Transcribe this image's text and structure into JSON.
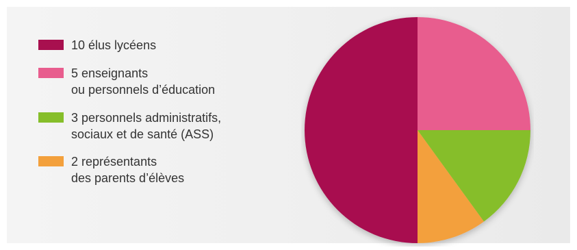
{
  "chart_data": {
    "type": "pie",
    "categories": [
      "10 élus lycéens",
      "5 enseignants ou personnels d’éducation",
      "3 personnels administratifs, sociaux et de santé (ASS)",
      "2 représentants des parents d’élèves"
    ],
    "values": [
      10,
      5,
      3,
      2
    ],
    "colors": [
      "#a8104f",
      "#e85d8e",
      "#86be2a",
      "#f3a03c"
    ],
    "legend_placement": "left",
    "start": "top, clockwise from 5 enseignants"
  },
  "legend": {
    "items": [
      {
        "line1": "10 élus lycéens",
        "line2": "",
        "color": "#a8104f"
      },
      {
        "line1": "5 enseignants",
        "line2": "ou personnels d’éducation",
        "color": "#e85d8e"
      },
      {
        "line1": "3 personnels administratifs,",
        "line2": "sociaux et de santé (ASS)",
        "color": "#86be2a"
      },
      {
        "line1": "2 représentants",
        "line2": "des parents d’élèves",
        "color": "#f3a03c"
      }
    ]
  }
}
